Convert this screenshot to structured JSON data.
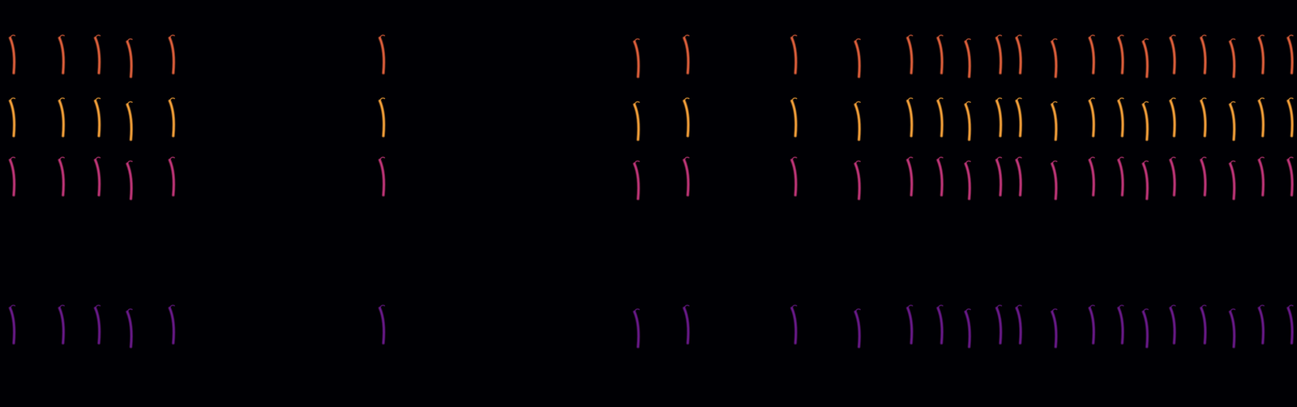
{
  "chart_data": {
    "type": "scatter",
    "xlim": [
      0,
      30
    ],
    "ylim": [
      0,
      11
    ],
    "tick_labels": false,
    "x": [
      0.29,
      1.43,
      2.26,
      3.0,
      3.98,
      8.84,
      14.73,
      15.88,
      18.37,
      19.84,
      21.05,
      21.75,
      22.39,
      23.11,
      23.57,
      24.39,
      25.26,
      25.93,
      26.5,
      27.13,
      27.84,
      28.51,
      29.18,
      29.85
    ],
    "series": [
      {
        "color": "#e0603c",
        "values": [
          9.5,
          9.5,
          9.5,
          9.4,
          9.5,
          9.5,
          9.4,
          9.5,
          9.5,
          9.4,
          9.5,
          9.5,
          9.4,
          9.5,
          9.5,
          9.4,
          9.5,
          9.5,
          9.4,
          9.5,
          9.5,
          9.4,
          9.5,
          9.5
        ]
      },
      {
        "color": "#f7a23a",
        "values": [
          7.8,
          7.8,
          7.8,
          7.7,
          7.8,
          7.8,
          7.7,
          7.8,
          7.8,
          7.7,
          7.8,
          7.8,
          7.7,
          7.8,
          7.8,
          7.7,
          7.8,
          7.8,
          7.7,
          7.8,
          7.8,
          7.7,
          7.8,
          7.8
        ]
      },
      {
        "color": "#c2367a",
        "values": [
          6.2,
          6.2,
          6.2,
          6.1,
          6.2,
          6.2,
          6.1,
          6.2,
          6.2,
          6.1,
          6.2,
          6.2,
          6.1,
          6.2,
          6.2,
          6.1,
          6.2,
          6.2,
          6.1,
          6.2,
          6.2,
          6.1,
          6.2,
          6.2
        ]
      },
      {
        "color": "#6a1a8a",
        "values": [
          2.2,
          2.2,
          2.2,
          2.1,
          2.2,
          2.2,
          2.1,
          2.2,
          2.2,
          2.1,
          2.2,
          2.2,
          2.1,
          2.2,
          2.2,
          2.1,
          2.2,
          2.2,
          2.1,
          2.2,
          2.2,
          2.1,
          2.2,
          2.2
        ]
      }
    ]
  }
}
